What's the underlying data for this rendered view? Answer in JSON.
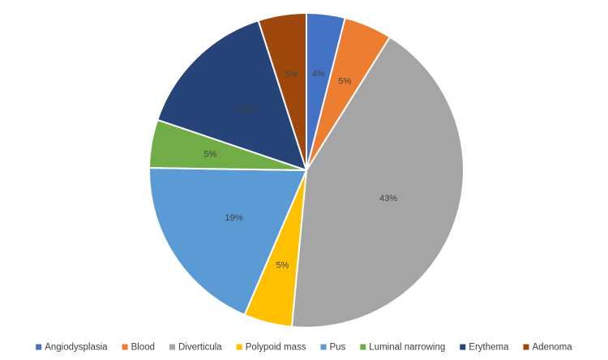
{
  "chart_data": {
    "type": "pie",
    "title": "",
    "legend_position": "bottom",
    "start_angle_deg": 0,
    "direction": "clockwise",
    "slices": [
      {
        "name": "Angiodysplasia",
        "value": 4,
        "label": "4%",
        "color": "#4472c4",
        "label_color": "#404040"
      },
      {
        "name": "Blood",
        "value": 5,
        "label": "5%",
        "color": "#ed7d31",
        "label_color": "#404040"
      },
      {
        "name": "Diverticula",
        "value": 43,
        "label": "43%",
        "color": "#a5a5a5",
        "label_color": "#404040"
      },
      {
        "name": "Polypoid mass",
        "value": 5,
        "label": "5%",
        "color": "#ffc000",
        "label_color": "#404040"
      },
      {
        "name": "Pus",
        "value": 19,
        "label": "19%",
        "color": "#5b9bd5",
        "label_color": "#404040"
      },
      {
        "name": "Luminal narrowing",
        "value": 5,
        "label": "5%",
        "color": "#70ad47",
        "label_color": "#404040"
      },
      {
        "name": "Erythema",
        "value": 15,
        "label": "15%",
        "color": "#264478",
        "label_color": "#404040"
      },
      {
        "name": "Adenoma",
        "value": 5,
        "label": "5%",
        "color": "#9e480e",
        "label_color": "#404040"
      }
    ]
  }
}
